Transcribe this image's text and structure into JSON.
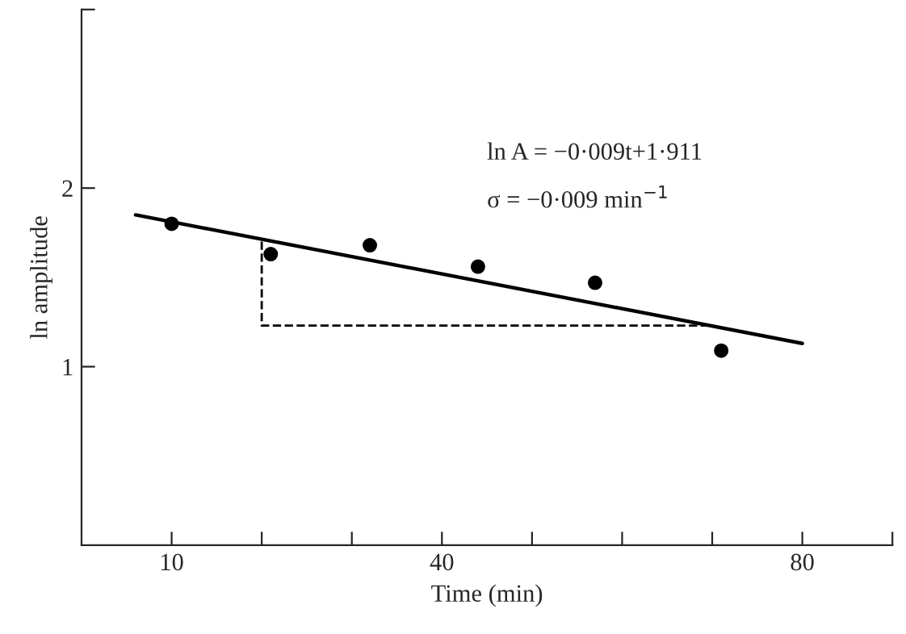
{
  "chart_data": {
    "type": "scatter",
    "xlabel": "Time (min)",
    "ylabel": "ln amplitude",
    "xlim": [
      0,
      90
    ],
    "ylim": [
      0,
      3
    ],
    "xticks": [
      {
        "value": 10,
        "label": "10"
      },
      {
        "value": 20,
        "label": null
      },
      {
        "value": 30,
        "label": null
      },
      {
        "value": 40,
        "label": "40"
      },
      {
        "value": 50,
        "label": null
      },
      {
        "value": 60,
        "label": null
      },
      {
        "value": 70,
        "label": null
      },
      {
        "value": 80,
        "label": "80"
      },
      {
        "value": 90,
        "label": null
      }
    ],
    "yticks": [
      1,
      2,
      {
        "value": 3,
        "label": null
      }
    ],
    "grid": false,
    "legend": false,
    "series": [
      {
        "color": "#000000",
        "marker": "circle",
        "x": [
          10,
          21,
          32,
          44,
          57,
          71
        ],
        "values": [
          1.8,
          1.63,
          1.68,
          1.56,
          1.47,
          1.09
        ]
      },
      {
        "type": "line",
        "color": "#000000",
        "line_style": "solid",
        "marker": "none",
        "x": [
          6,
          80
        ],
        "values": [
          1.85,
          1.13
        ]
      },
      {
        "type": "line",
        "color": "#000000",
        "line_style": "dashed",
        "marker": "none",
        "x": [
          20,
          20,
          70
        ],
        "values": [
          1.7,
          1.23,
          1.23
        ]
      }
    ],
    "annotations": [
      "ln A = −0·009t+1·911",
      "σ = −0·009 min$^{−1}$"
    ]
  }
}
